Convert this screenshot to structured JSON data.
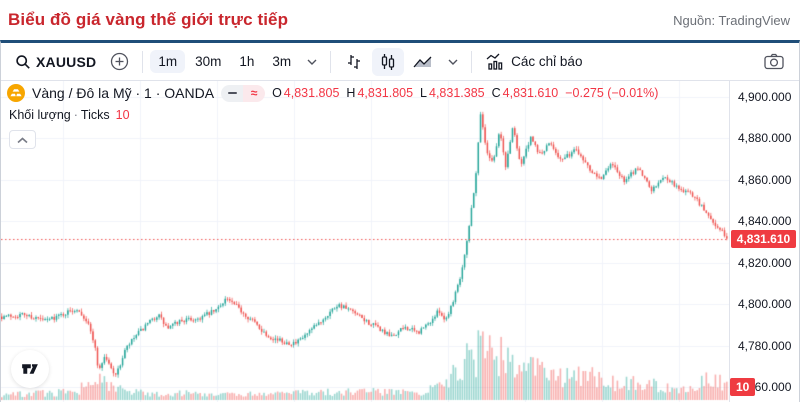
{
  "page": {
    "title": "Biểu đồ giá vàng thế giới trực tiếp",
    "source": "Nguồn: TradingView"
  },
  "toolbar": {
    "symbol": "XAUUSD",
    "intervals": [
      {
        "label": "1m",
        "selected": true
      },
      {
        "label": "30m",
        "selected": false
      },
      {
        "label": "1h",
        "selected": false
      },
      {
        "label": "3m",
        "selected": false
      }
    ],
    "indicators_label": "Các chỉ báo"
  },
  "legend": {
    "symbol_title": "Vàng / Đô la Mỹ · 1 · OANDA",
    "approx": "≈",
    "ohlc": [
      {
        "k": "O",
        "v": "4,831.805"
      },
      {
        "k": "H",
        "v": "4,831.805"
      },
      {
        "k": "L",
        "v": "4,831.385"
      },
      {
        "k": "C",
        "v": "4,831.610"
      }
    ],
    "change": "−0.275 (−0.01%)",
    "volume_label": "Khối lượng",
    "volume_sep": "·",
    "volume_type": "Ticks",
    "volume_value": "10"
  },
  "axis": {
    "last_price_label": "4,831.610",
    "volume_badge": "10"
  },
  "colors": {
    "title_red": "#c9262d",
    "widget_top_border": "#1f4e79",
    "badge_red": "#ef3b41",
    "value_red": "#f23645",
    "up": "#26a69a",
    "down": "#ef5350"
  },
  "chart_data": {
    "type": "candlestick",
    "symbol": "XAUUSD",
    "description": "Vàng / Đô la Mỹ",
    "interval": "1m",
    "exchange": "OANDA",
    "volume_type": "Ticks",
    "ohlc_current": {
      "open": 4831.805,
      "high": 4831.805,
      "low": 4831.385,
      "close": 4831.61,
      "change": -0.275,
      "change_pct": "-0.01%"
    },
    "last_price": 4831.61,
    "up_color": "#26a69a",
    "down_color": "#ef5350",
    "y_axis": {
      "min": 4755,
      "max": 4905,
      "ticks": [
        {
          "price": 4900,
          "label": "4,900.000"
        },
        {
          "price": 4880,
          "label": "4,880.000"
        },
        {
          "price": 4860,
          "label": "4,860.000"
        },
        {
          "price": 4840,
          "label": "4,840.000"
        },
        {
          "price": 4820,
          "label": "4,820.000"
        },
        {
          "price": 4800,
          "label": "4,800.000"
        },
        {
          "price": 4780,
          "label": "4,780.000"
        },
        {
          "price": 4760,
          "label": "4,760.000"
        }
      ]
    },
    "price_path": [
      [
        0,
        4794
      ],
      [
        0.03,
        4795
      ],
      [
        0.06,
        4792
      ],
      [
        0.09,
        4796
      ],
      [
        0.105,
        4798
      ],
      [
        0.118,
        4791
      ],
      [
        0.127,
        4782
      ],
      [
        0.133,
        4768
      ],
      [
        0.142,
        4775
      ],
      [
        0.15,
        4769
      ],
      [
        0.158,
        4766
      ],
      [
        0.17,
        4778
      ],
      [
        0.185,
        4785
      ],
      [
        0.2,
        4790
      ],
      [
        0.215,
        4795
      ],
      [
        0.228,
        4788
      ],
      [
        0.245,
        4792
      ],
      [
        0.27,
        4793
      ],
      [
        0.295,
        4797
      ],
      [
        0.308,
        4803
      ],
      [
        0.322,
        4799
      ],
      [
        0.345,
        4792
      ],
      [
        0.365,
        4785
      ],
      [
        0.385,
        4782
      ],
      [
        0.405,
        4781
      ],
      [
        0.425,
        4787
      ],
      [
        0.445,
        4794
      ],
      [
        0.462,
        4800
      ],
      [
        0.478,
        4797
      ],
      [
        0.5,
        4792
      ],
      [
        0.52,
        4788
      ],
      [
        0.535,
        4784
      ],
      [
        0.555,
        4789
      ],
      [
        0.572,
        4786
      ],
      [
        0.588,
        4791
      ],
      [
        0.602,
        4797
      ],
      [
        0.61,
        4792
      ],
      [
        0.62,
        4801
      ],
      [
        0.632,
        4815
      ],
      [
        0.643,
        4838
      ],
      [
        0.652,
        4862
      ],
      [
        0.659,
        4894
      ],
      [
        0.666,
        4874
      ],
      [
        0.676,
        4869
      ],
      [
        0.685,
        4884
      ],
      [
        0.693,
        4866
      ],
      [
        0.703,
        4886
      ],
      [
        0.714,
        4867
      ],
      [
        0.727,
        4880
      ],
      [
        0.741,
        4872
      ],
      [
        0.755,
        4878
      ],
      [
        0.77,
        4869
      ],
      [
        0.79,
        4875
      ],
      [
        0.81,
        4865
      ],
      [
        0.825,
        4861
      ],
      [
        0.84,
        4868
      ],
      [
        0.856,
        4859
      ],
      [
        0.875,
        4866
      ],
      [
        0.895,
        4855
      ],
      [
        0.912,
        4862
      ],
      [
        0.93,
        4856
      ],
      [
        0.95,
        4853
      ],
      [
        0.965,
        4846
      ],
      [
        0.982,
        4838
      ],
      [
        1,
        4831.6
      ]
    ],
    "volume_profile": [
      [
        0,
        0.1
      ],
      [
        0.05,
        0.13
      ],
      [
        0.1,
        0.15
      ],
      [
        0.125,
        0.4
      ],
      [
        0.14,
        0.32
      ],
      [
        0.16,
        0.2
      ],
      [
        0.2,
        0.12
      ],
      [
        0.25,
        0.14
      ],
      [
        0.3,
        0.12
      ],
      [
        0.35,
        0.11
      ],
      [
        0.4,
        0.13
      ],
      [
        0.45,
        0.15
      ],
      [
        0.5,
        0.16
      ],
      [
        0.55,
        0.14
      ],
      [
        0.585,
        0.18
      ],
      [
        0.61,
        0.3
      ],
      [
        0.63,
        0.6
      ],
      [
        0.645,
        0.95
      ],
      [
        0.66,
        0.9
      ],
      [
        0.68,
        0.85
      ],
      [
        0.7,
        0.8
      ],
      [
        0.72,
        0.72
      ],
      [
        0.74,
        0.58
      ],
      [
        0.77,
        0.42
      ],
      [
        0.8,
        0.5
      ],
      [
        0.83,
        0.36
      ],
      [
        0.86,
        0.32
      ],
      [
        0.89,
        0.3
      ],
      [
        0.92,
        0.26
      ],
      [
        0.95,
        0.24
      ],
      [
        0.97,
        0.38
      ],
      [
        1,
        0.3
      ]
    ]
  }
}
